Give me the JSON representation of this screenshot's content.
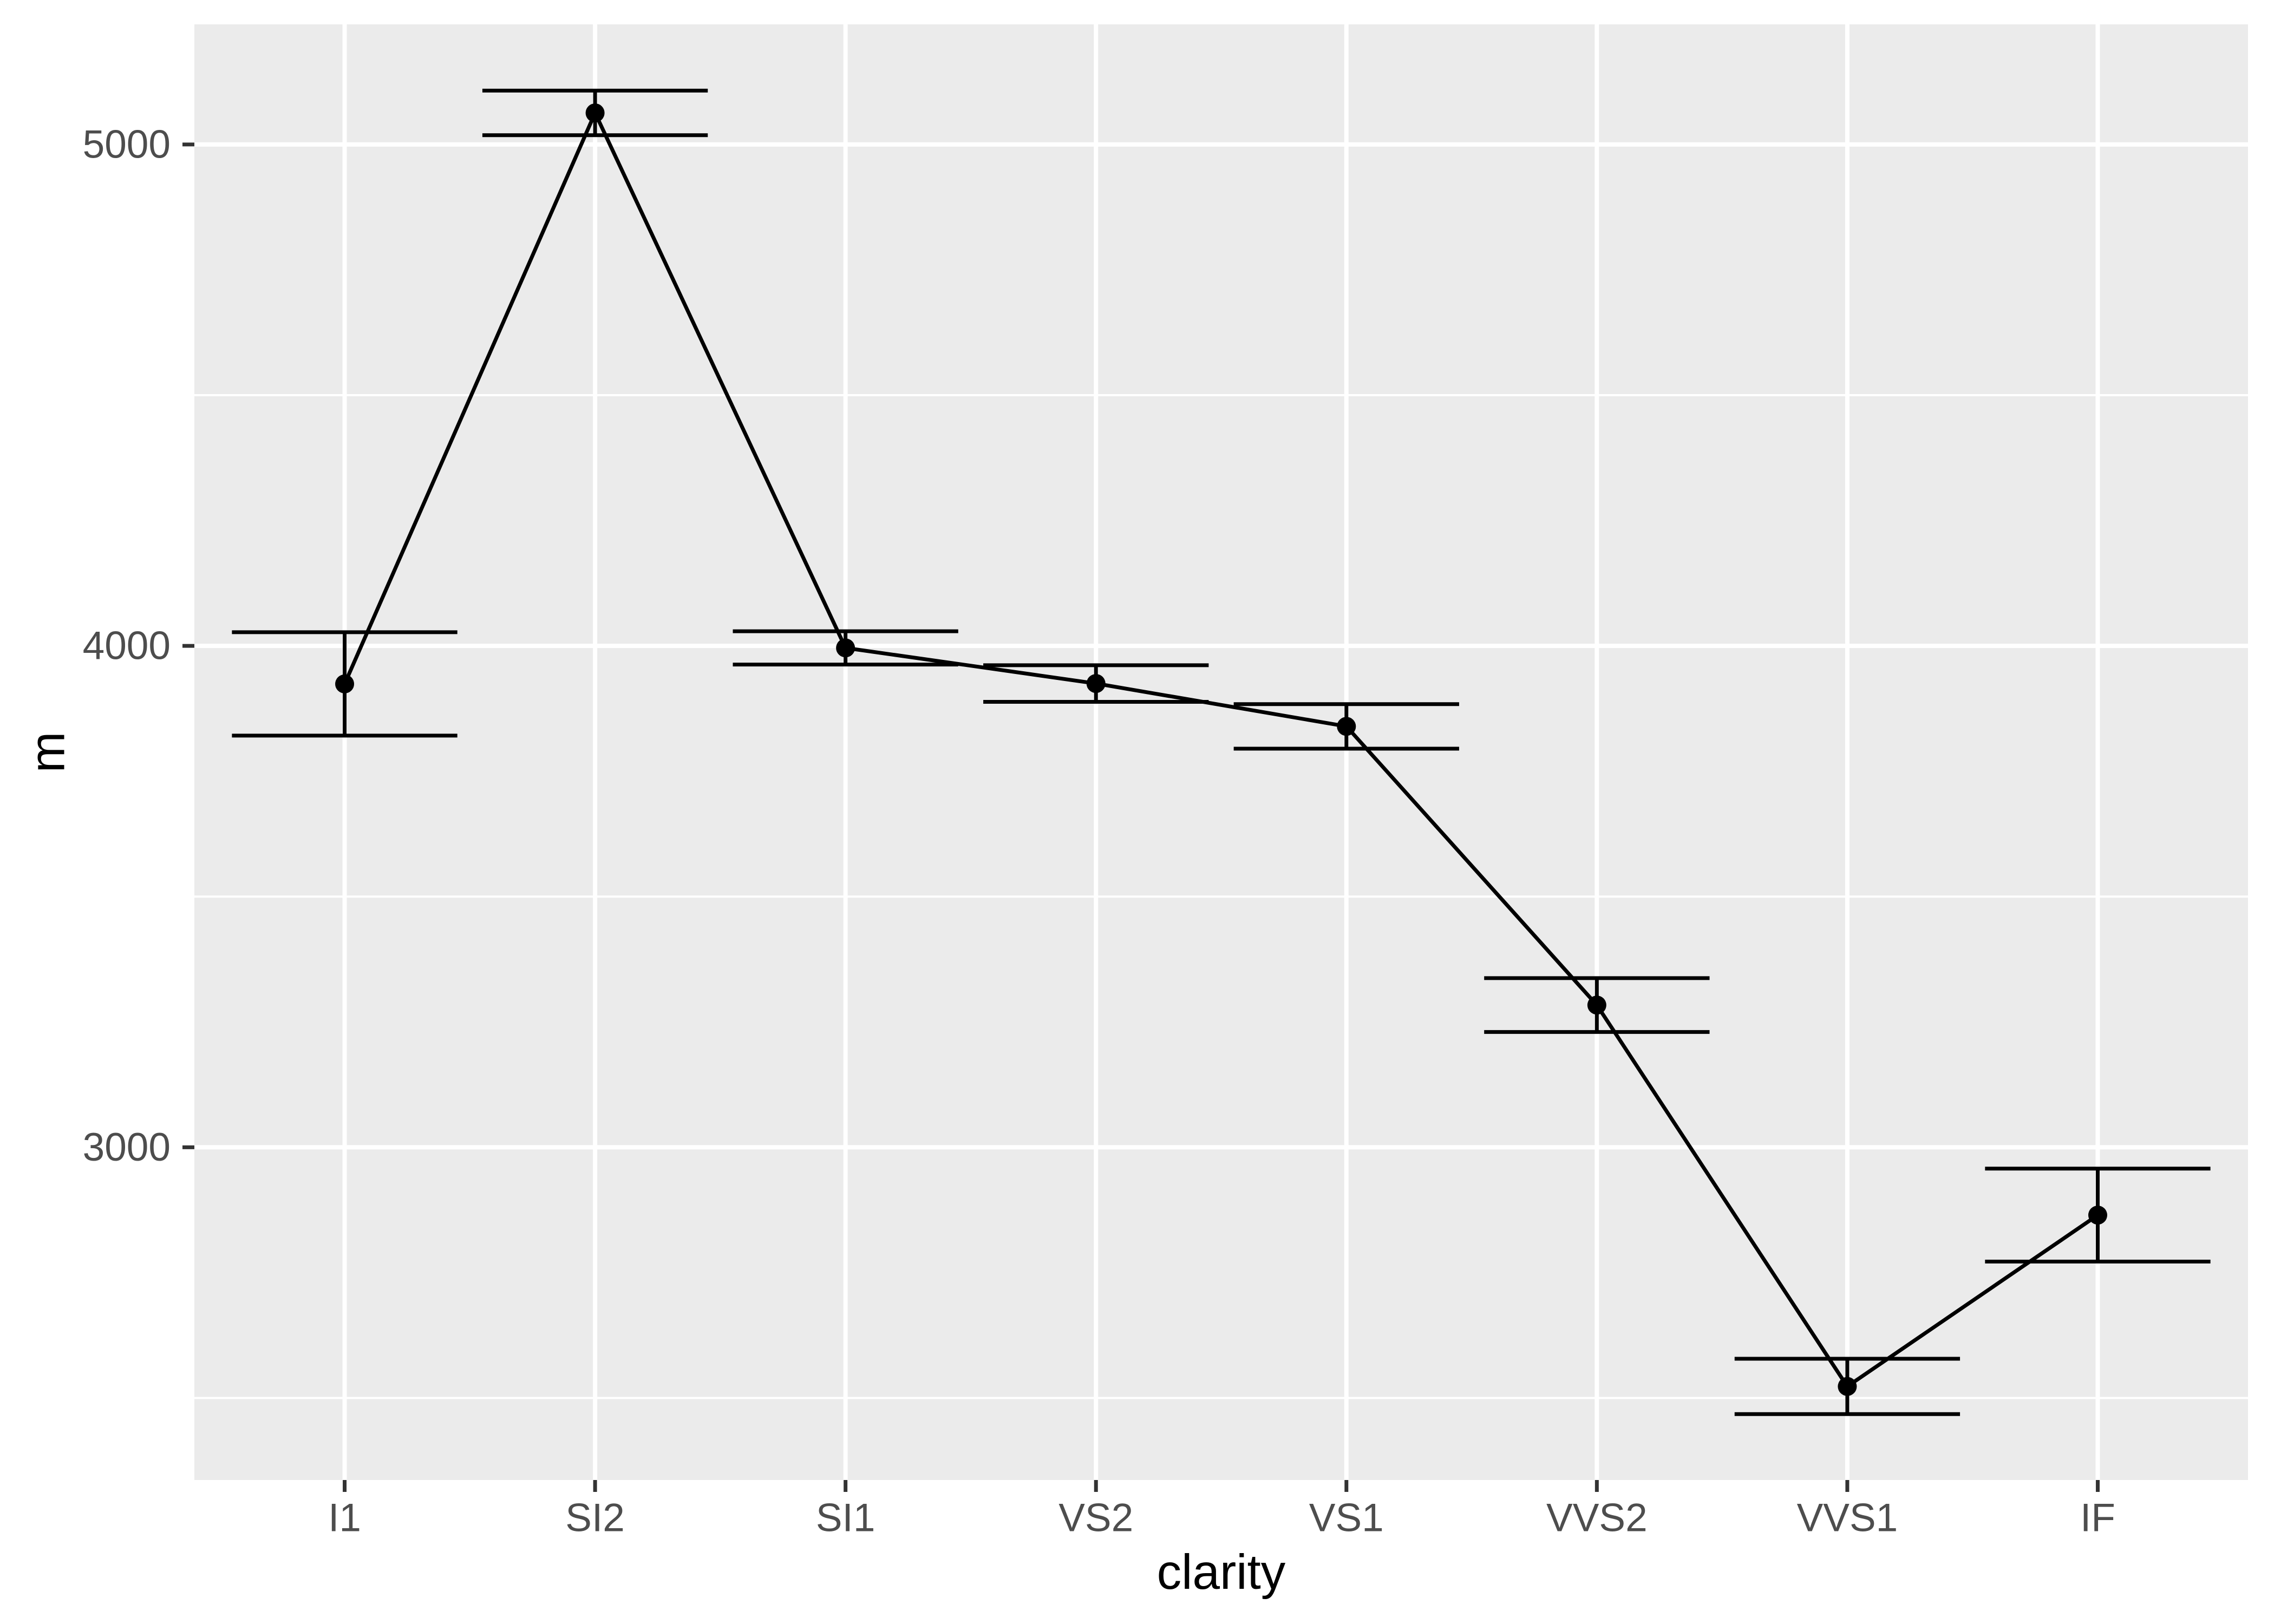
{
  "chart_data": {
    "type": "line",
    "subtype": "pointrange-errorbar",
    "title": "",
    "xlabel": "clarity",
    "ylabel": "m",
    "categories": [
      "I1",
      "SI2",
      "SI1",
      "VS2",
      "VS1",
      "VVS2",
      "VVS1",
      "IF"
    ],
    "series": [
      {
        "name": "m",
        "values": [
          3924.2,
          5063.0,
          3996.0,
          3925.0,
          3839.5,
          3283.7,
          2523.1,
          2864.8
        ],
        "error_low": [
          3821.1,
          5018.6,
          3962.8,
          3888.5,
          3795.1,
          3230.0,
          2467.9,
          2772.1
        ],
        "error_high": [
          4027.3,
          5107.5,
          4029.2,
          3961.5,
          3883.8,
          3337.4,
          2578.3,
          2957.5
        ]
      }
    ],
    "y_breaks": [
      3000,
      4000,
      5000
    ],
    "y_break_labels": [
      "3000",
      "4000",
      "5000"
    ],
    "y_minor_breaks": [
      2500,
      3500,
      4500
    ],
    "ylim": [
      2336.5,
      5239.6
    ],
    "x_expansion_units": 0.6,
    "errorbar_cap_halfwidth_units": 0.45,
    "grid": true,
    "legend_position": "none",
    "colors": {
      "outer_background": "#ffffff",
      "panel_background": "#ebebeb",
      "gridline": "#ffffff",
      "data": "#000000",
      "tick_mark": "#333333",
      "tick_label": "#4d4d4d",
      "axis_title": "#000000"
    }
  }
}
